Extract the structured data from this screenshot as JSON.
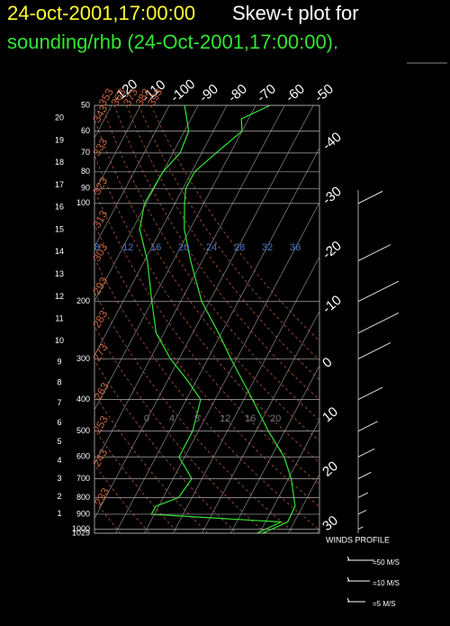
{
  "chart_data": {
    "type": "skewt",
    "title": "24-oct-2001,17:00:00",
    "title_suffix": "Skew-t plot for",
    "subtitle": "sounding/rhb (24-Oct-2001,17:00:00).",
    "ylim": [
      1029,
      50
    ],
    "yticks": [
      50,
      60,
      70,
      80,
      90,
      100,
      200,
      300,
      400,
      500,
      600,
      700,
      800,
      900,
      1000,
      1029
    ],
    "height_ticks": [
      1,
      2,
      3,
      4,
      5,
      6,
      7,
      8,
      9,
      10,
      11,
      12,
      13,
      14,
      15,
      16,
      17,
      18,
      19,
      20
    ],
    "xticks": [
      -120,
      -110,
      -100,
      -90,
      -80,
      -70,
      -60,
      -50,
      -40,
      -30,
      -20,
      -10,
      0,
      10,
      20,
      30
    ],
    "dry_adiabats": [
      223,
      233,
      243,
      253,
      263,
      273,
      283,
      293,
      303,
      313,
      323,
      333,
      343,
      353,
      363,
      373,
      383,
      393
    ],
    "moist_labels": [
      8,
      12,
      16,
      20,
      24,
      28,
      32,
      36
    ],
    "mixing_labels": [
      0,
      4,
      8,
      12,
      16,
      20
    ],
    "grid": true,
    "series": [
      {
        "color": "#33e633",
        "y": [
          1029,
          950,
          850,
          700,
          600,
          500,
          400,
          300,
          250,
          200,
          150,
          120,
          100,
          90,
          80,
          70,
          60,
          55,
          50
        ],
        "values": [
          11,
          17.7,
          17.4,
          11,
          4.5,
          -5.7,
          -17,
          -32,
          -41,
          -52.7,
          -64,
          -72,
          -76.7,
          -79,
          -79,
          -75,
          -70,
          -72.5,
          -65
        ]
      },
      {
        "color": "#33e633",
        "y": [
          1029,
          950,
          900,
          850,
          800,
          700,
          600,
          500,
          400,
          350,
          300,
          250,
          200,
          150,
          120,
          100,
          80,
          70,
          60,
          50
        ],
        "values": [
          9,
          15.5,
          -31,
          -31,
          -24.7,
          -23.5,
          -32,
          -32,
          -35,
          -43,
          -53,
          -62.7,
          -70,
          -79,
          -87.5,
          -90.6,
          -90,
          -87.5,
          -88.5,
          -94.7
        ]
      }
    ],
    "winds": {
      "title": "WINDS PROFILE",
      "y": [
        100,
        150,
        200,
        250,
        300,
        400,
        500,
        600,
        700,
        800,
        900,
        1000
      ],
      "values": [
        15,
        20,
        25,
        25,
        20,
        15,
        12,
        10,
        8,
        6,
        5,
        3
      ],
      "legend_values": [
        50,
        10,
        5
      ],
      "legend_labels": [
        "=50 M/S",
        "=10 M/S",
        "=5 M/S"
      ]
    }
  }
}
